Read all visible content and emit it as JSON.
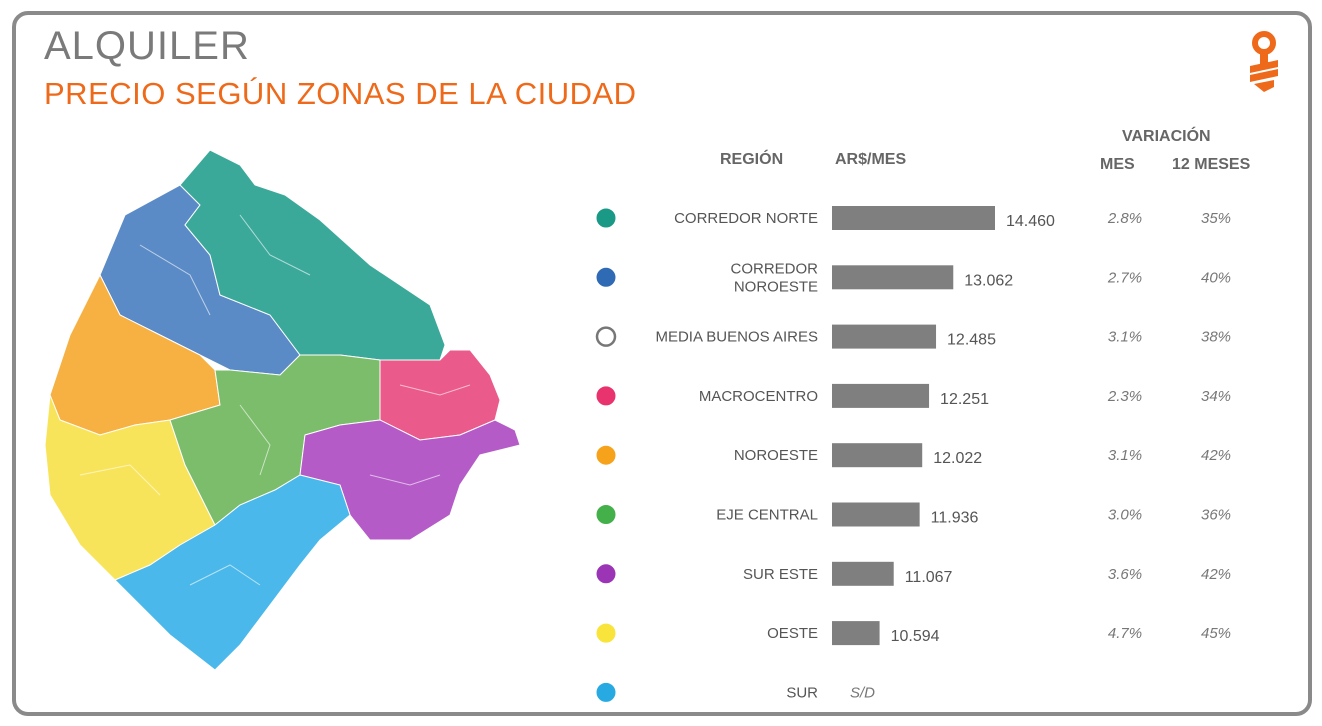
{
  "header": {
    "title": "ALQUILER",
    "subtitle": "PRECIO SEGÚN ZONAS DE LA CIUDAD"
  },
  "columns": {
    "region": "REGIÓN",
    "price": "AR$/MES",
    "variation": "VARIACIÓN",
    "month": "MES",
    "year": "12 MESES"
  },
  "chart_data": {
    "type": "bar",
    "orientation": "horizontal",
    "categories": [
      [
        "CORREDOR NORTE"
      ],
      [
        "CORREDOR",
        "NOROESTE"
      ],
      [
        "MEDIA BUENOS AIRES"
      ],
      [
        "MACROCENTRO"
      ],
      [
        "NOROESTE"
      ],
      [
        "EJE CENTRAL"
      ],
      [
        "SUR ESTE"
      ],
      [
        "OESTE"
      ],
      [
        "SUR"
      ]
    ],
    "values": [
      14460,
      13062,
      12485,
      12251,
      12022,
      11936,
      11067,
      10594,
      null
    ],
    "value_labels": [
      "14.460",
      "13.062",
      "12.485",
      "12.251",
      "12.022",
      "11.936",
      "11.067",
      "10.594",
      "S/D"
    ],
    "variation_month": [
      "2.8%",
      "2.7%",
      "3.1%",
      "2.3%",
      "3.1%",
      "3.0%",
      "3.6%",
      "4.7%",
      ""
    ],
    "variation_12m": [
      "35%",
      "40%",
      "38%",
      "34%",
      "42%",
      "36%",
      "42%",
      "45%",
      ""
    ],
    "dot_colors": [
      "#1a9a86",
      "#2f6ab4",
      "#ffffff",
      "#e8336e",
      "#f7a21b",
      "#44b04a",
      "#9b35b5",
      "#f8e43a",
      "#27aae1"
    ],
    "bar_color": "#7f7f7f",
    "xlim": [
      0,
      15000
    ]
  },
  "map_colors": {
    "corredor_norte": "#3aa99a",
    "corredor_noroeste": "#5b8bc6",
    "noroeste": "#f6b142",
    "oeste": "#f8e45a",
    "eje_central": "#7cbd6c",
    "macrocentro": "#ea5a8a",
    "sur_este": "#b55bc8",
    "sur": "#4ab8ea"
  }
}
